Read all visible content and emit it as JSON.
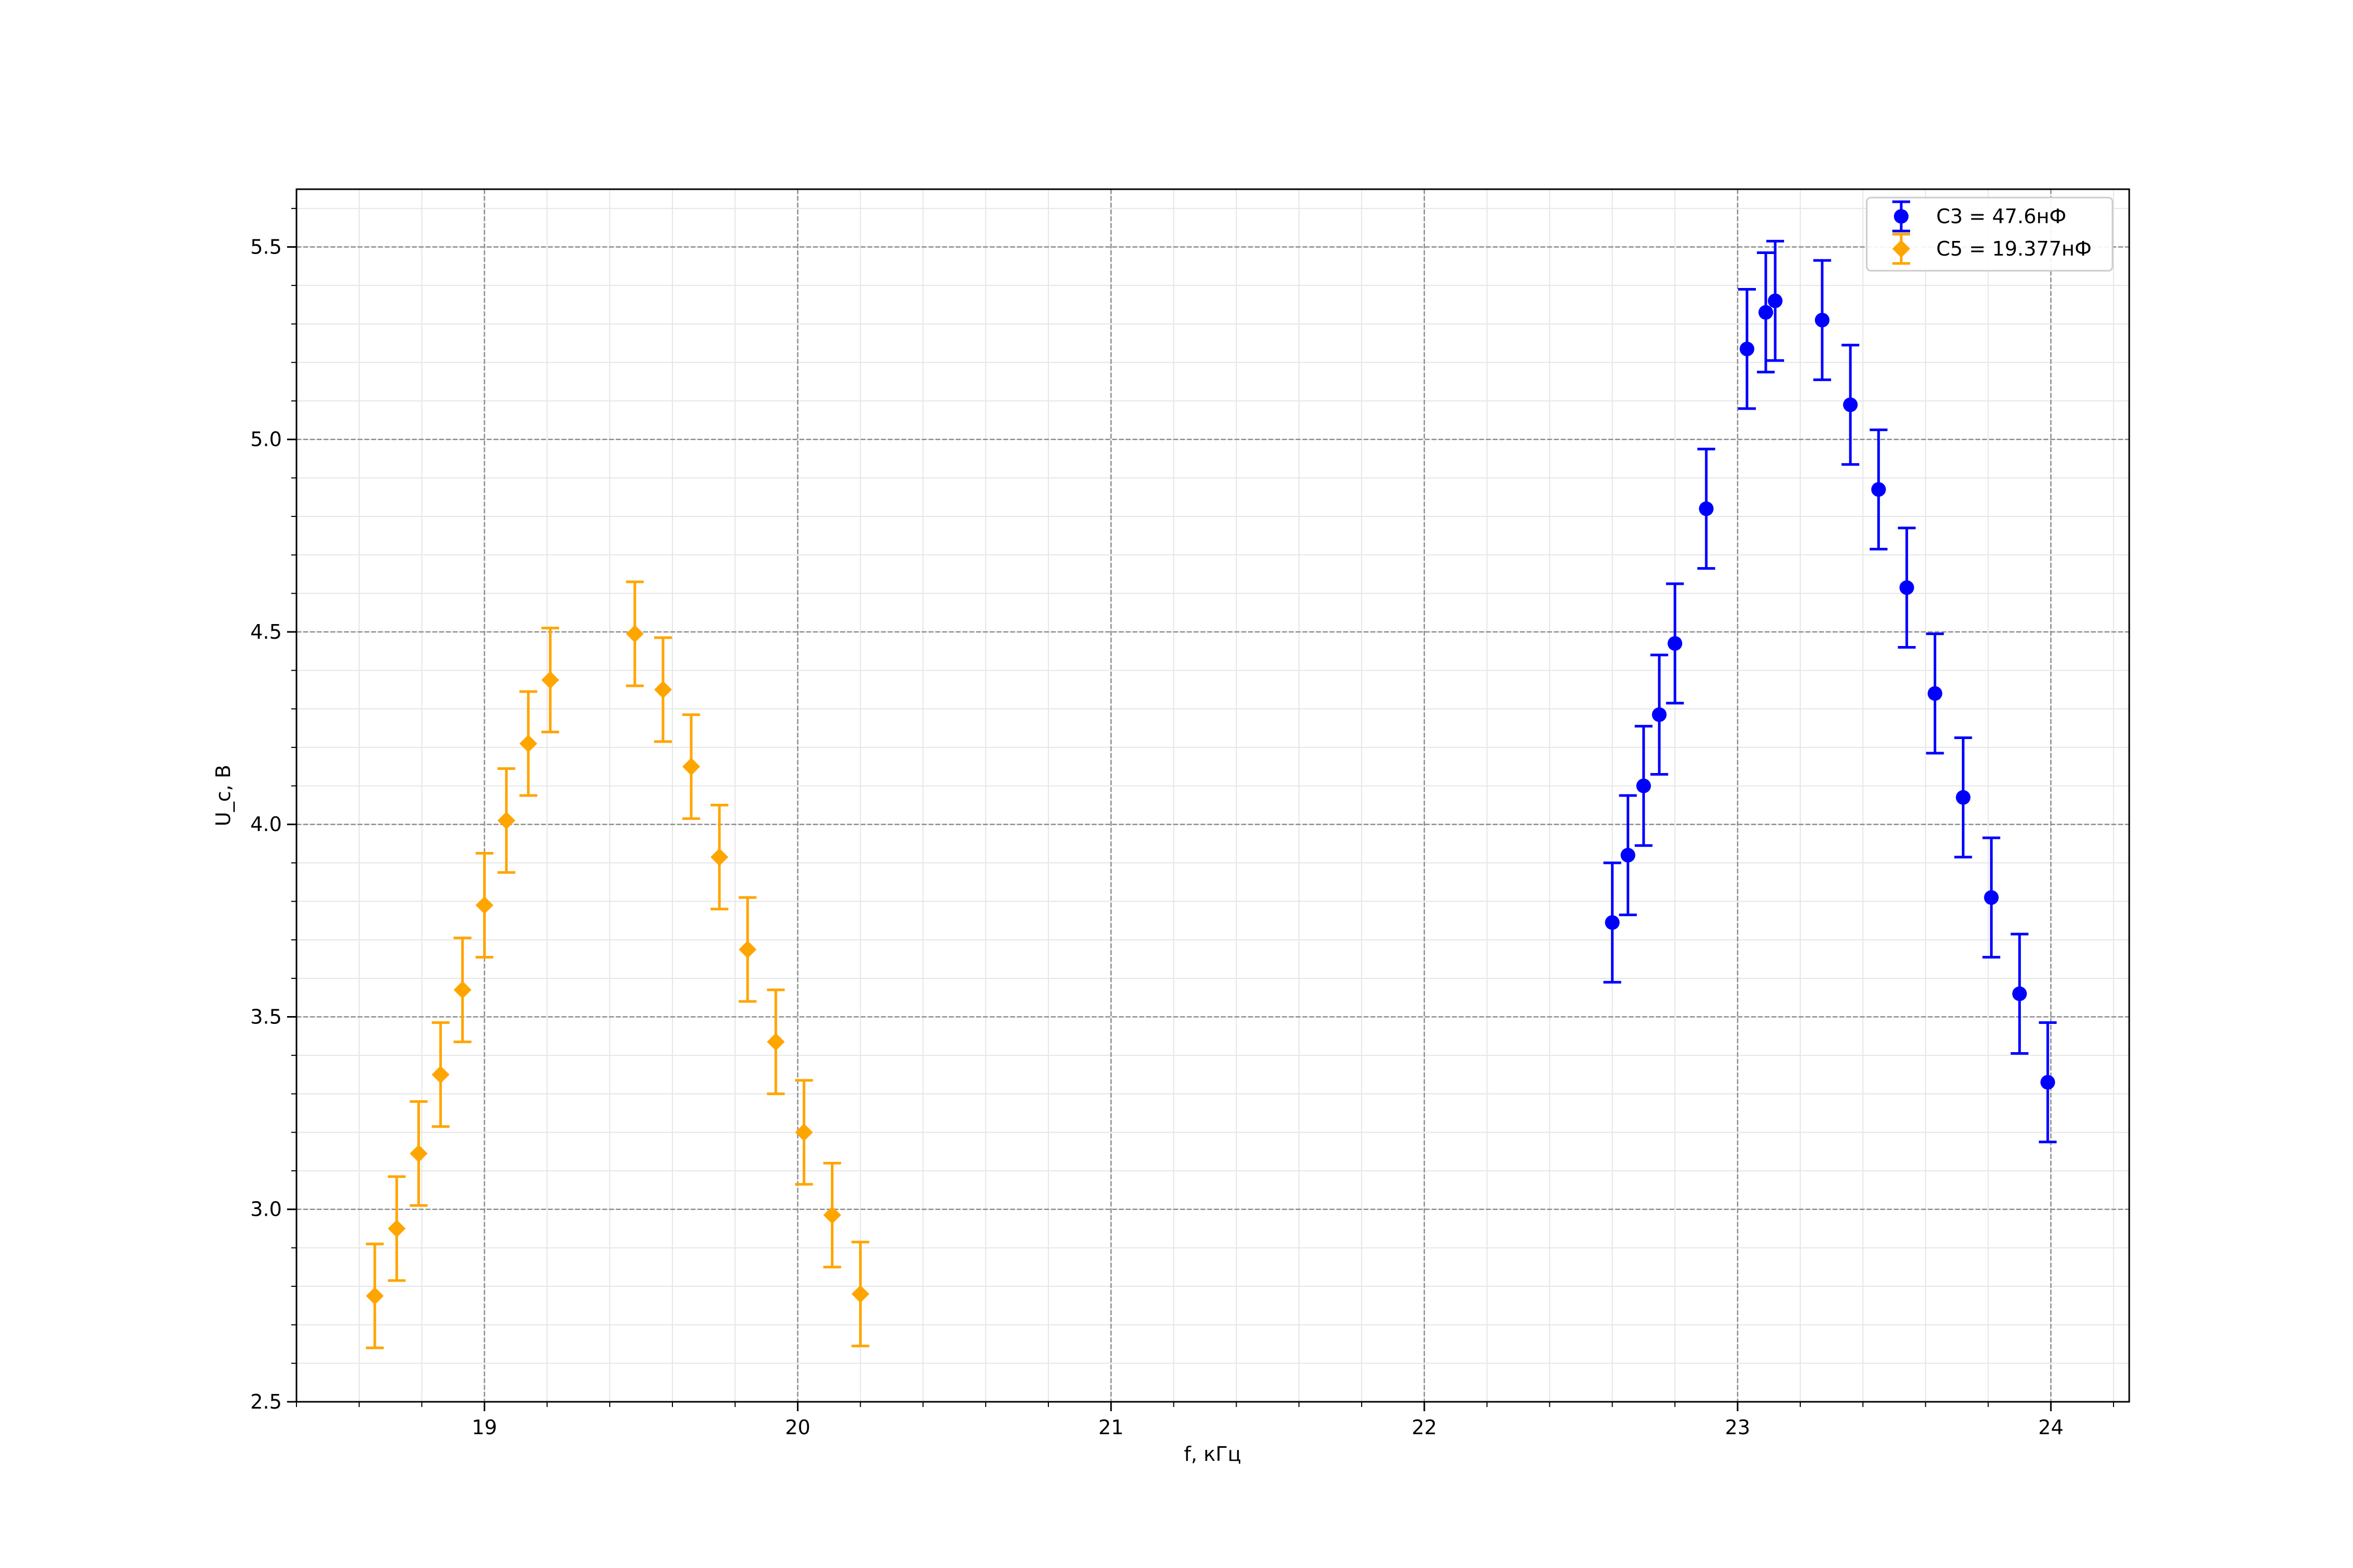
{
  "chart_data": {
    "type": "scatter",
    "error_bars": true,
    "xlabel": "f, кГц",
    "ylabel": "U_c, В",
    "xlim": [
      18.4,
      24.25
    ],
    "ylim": [
      2.5,
      5.65
    ],
    "x_ticks": [
      "19",
      "20",
      "21",
      "22",
      "23",
      "24"
    ],
    "y_ticks": [
      "2.5",
      "3.0",
      "3.5",
      "4.0",
      "4.5",
      "5.0",
      "5.5"
    ],
    "grid": "major and minor",
    "legend_position": "top-right",
    "series": [
      {
        "name": "C3 = 47.6нФ",
        "color": "#0000ff",
        "marker": "circle",
        "x": [
          22.6,
          22.65,
          22.7,
          22.75,
          22.8,
          22.9,
          23.03,
          23.09,
          23.12,
          23.27,
          23.36,
          23.45,
          23.54,
          23.63,
          23.72,
          23.81,
          23.9,
          23.99
        ],
        "y": [
          3.745,
          3.92,
          4.1,
          4.285,
          4.47,
          4.82,
          5.235,
          5.33,
          5.36,
          5.31,
          5.09,
          4.87,
          4.615,
          4.34,
          4.07,
          3.81,
          3.56,
          3.33
        ],
        "yerr": [
          0.155,
          0.155,
          0.155,
          0.155,
          0.155,
          0.155,
          0.155,
          0.155,
          0.155,
          0.155,
          0.155,
          0.155,
          0.155,
          0.155,
          0.155,
          0.155,
          0.155,
          0.155
        ]
      },
      {
        "name": "C5 = 19.377нФ",
        "color": "#ffa500",
        "marker": "diamond",
        "x": [
          18.65,
          18.72,
          18.79,
          18.86,
          18.93,
          19.0,
          19.07,
          19.14,
          19.21,
          19.48,
          19.57,
          19.66,
          19.75,
          19.84,
          19.93,
          20.02,
          20.11,
          20.2
        ],
        "y": [
          2.775,
          2.95,
          3.145,
          3.35,
          3.57,
          3.79,
          4.01,
          4.21,
          4.375,
          4.495,
          4.35,
          4.15,
          3.915,
          3.675,
          3.435,
          3.2,
          2.985,
          2.78
        ],
        "yerr": [
          0.135,
          0.135,
          0.135,
          0.135,
          0.135,
          0.135,
          0.135,
          0.135,
          0.135,
          0.135,
          0.135,
          0.135,
          0.135,
          0.135,
          0.135,
          0.135,
          0.135,
          0.135
        ]
      }
    ]
  }
}
